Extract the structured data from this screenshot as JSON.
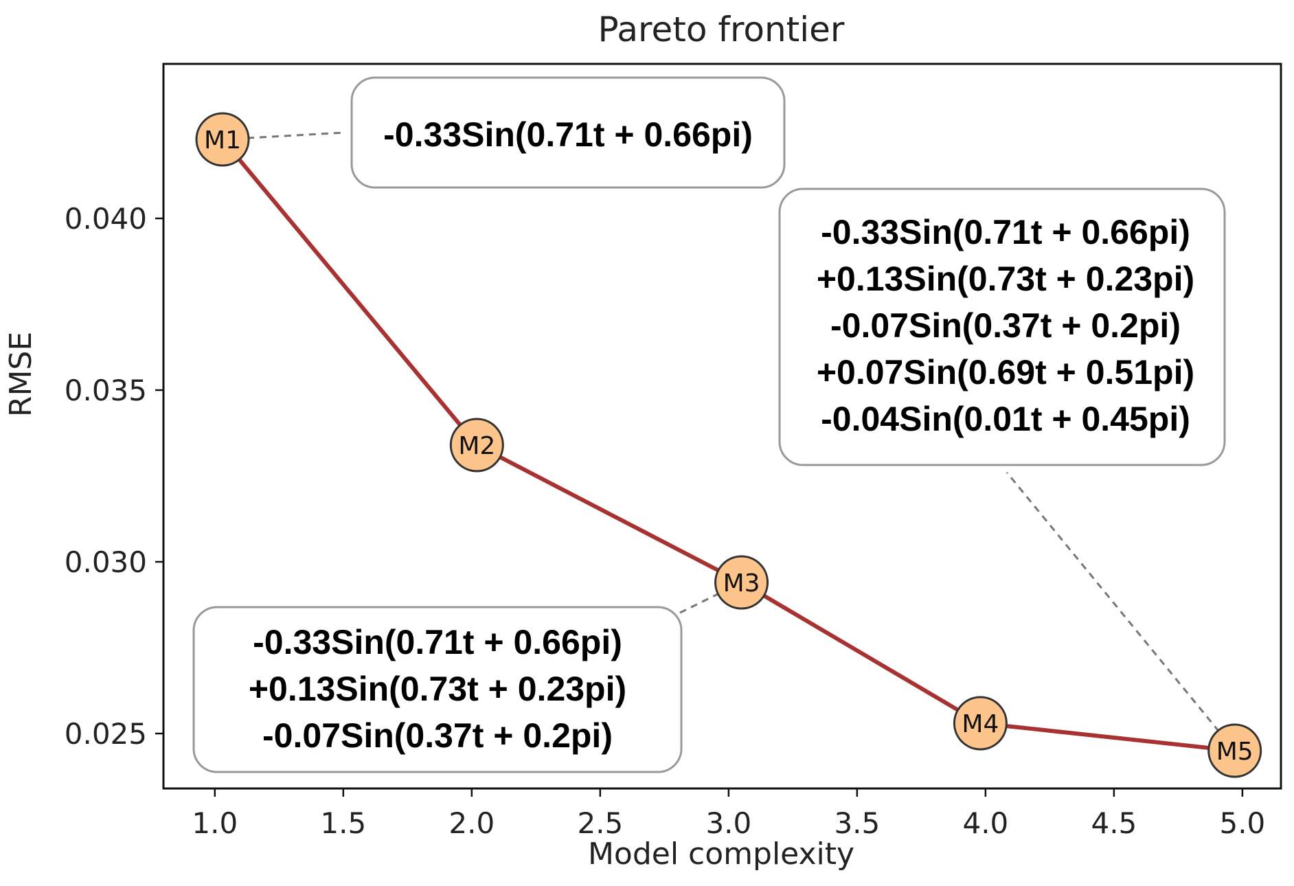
{
  "chart_data": {
    "type": "line",
    "title": "Pareto frontier",
    "xlabel": "Model complexity",
    "ylabel": "RMSE",
    "xlim": [
      0.8,
      5.15
    ],
    "ylim": [
      0.0234,
      0.0445
    ],
    "x_ticks": [
      1.0,
      1.5,
      2.0,
      2.5,
      3.0,
      3.5,
      4.0,
      4.5,
      5.0
    ],
    "x_tick_labels": [
      "1.0",
      "1.5",
      "2.0",
      "2.5",
      "3.0",
      "3.5",
      "4.0",
      "4.5",
      "5.0"
    ],
    "y_ticks": [
      0.025,
      0.03,
      0.035,
      0.04
    ],
    "y_tick_labels": [
      "0.025",
      "0.030",
      "0.035",
      "0.040"
    ],
    "grid": false,
    "colors": {
      "line": "#a83232",
      "marker_fill": "#fdc48c",
      "marker_edge": "#333333",
      "leader": "#777777",
      "box_edge": "#999999"
    },
    "points": [
      {
        "label": "M1",
        "x": 1.03,
        "y": 0.0423
      },
      {
        "label": "M2",
        "x": 2.02,
        "y": 0.0334
      },
      {
        "label": "M3",
        "x": 3.05,
        "y": 0.0294
      },
      {
        "label": "M4",
        "x": 3.98,
        "y": 0.0253
      },
      {
        "label": "M5",
        "x": 4.97,
        "y": 0.0245
      }
    ],
    "annotations": [
      {
        "target": "M1",
        "lines": [
          "-0.33Sin(0.71t + 0.66pi)"
        ]
      },
      {
        "target": "M3",
        "lines": [
          "-0.33Sin(0.71t + 0.66pi)",
          "+0.13Sin(0.73t + 0.23pi)",
          "-0.07Sin(0.37t + 0.2pi)"
        ]
      },
      {
        "target": "M5",
        "lines": [
          "-0.33Sin(0.71t + 0.66pi)",
          "+0.13Sin(0.73t + 0.23pi)",
          "-0.07Sin(0.37t + 0.2pi)",
          "+0.07Sin(0.69t + 0.51pi)",
          "-0.04Sin(0.01t + 0.45pi)"
        ]
      }
    ]
  }
}
